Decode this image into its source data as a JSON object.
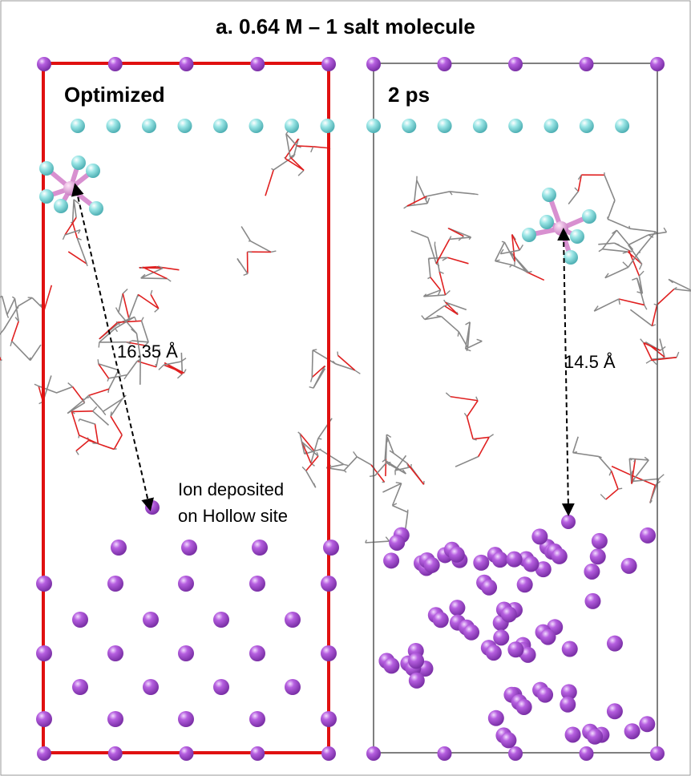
{
  "title": "a. 0.64 M – 1 salt molecule",
  "panels": [
    {
      "label": "Optimized",
      "distance": "16.35 Å",
      "annotation": [
        "Ion deposited",
        "on Hollow site"
      ]
    },
    {
      "label": "2 ps",
      "distance": "14.5 Å"
    }
  ]
}
